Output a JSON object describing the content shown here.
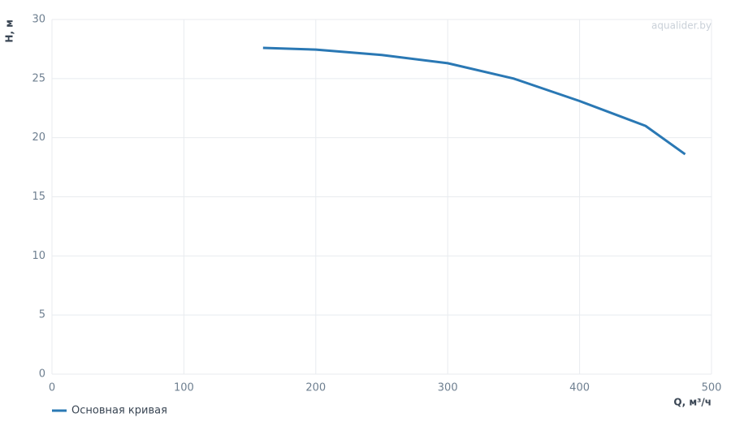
{
  "chart_data": {
    "type": "line",
    "watermark": "aqualider.by",
    "x_label": "Q, м³/ч",
    "y_label": "H, м",
    "x": [
      160,
      200,
      250,
      300,
      350,
      400,
      450,
      480
    ],
    "series": [
      {
        "name": "Основная кривая",
        "color": "#2a78b4",
        "values": [
          27.6,
          27.45,
          27.0,
          26.3,
          25.0,
          23.1,
          21.0,
          18.6
        ]
      }
    ],
    "xlim": [
      0,
      500
    ],
    "xticks": [
      0,
      100,
      200,
      300,
      400,
      500
    ],
    "ylim": [
      0,
      30
    ],
    "yticks": [
      0,
      5,
      10,
      15,
      20,
      25,
      30
    ],
    "grid": true
  }
}
